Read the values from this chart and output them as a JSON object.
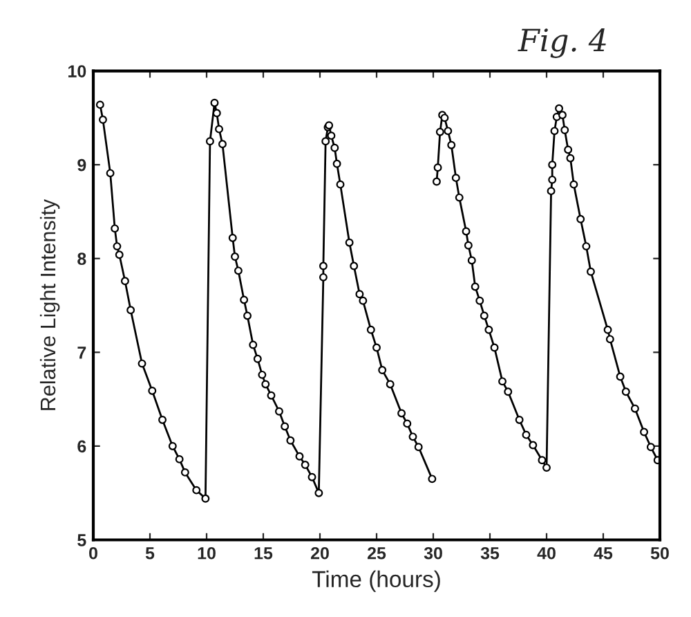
{
  "chart_data": {
    "type": "line",
    "xlabel": "Time (hours)",
    "ylabel": "Relative Light Intensity",
    "annotations": [
      "Fig. 4"
    ],
    "series": [
      {
        "color": "#000000",
        "x": [
          0.6,
          0.85,
          1.5,
          1.9,
          2.1,
          2.3,
          2.8,
          3.3,
          4.3,
          5.2,
          6.1,
          7.0,
          7.6,
          8.1,
          9.1,
          9.9,
          10.3,
          10.7,
          10.9,
          11.1,
          11.4,
          12.3,
          12.5,
          12.8,
          13.3,
          13.6,
          14.1,
          14.5,
          14.9,
          15.2,
          15.7,
          16.4,
          16.9,
          17.4,
          18.2,
          18.7,
          19.3,
          19.9,
          20.3,
          20.3,
          20.5,
          20.7,
          20.8,
          21.0,
          21.3,
          21.5,
          21.8,
          22.6,
          23.0,
          23.5,
          23.8,
          24.5,
          25.0,
          25.5,
          26.2,
          27.2,
          27.7,
          28.2,
          28.7,
          29.9,
          30.1,
          30.3,
          30.4,
          30.6,
          30.8,
          31.0,
          31.3,
          31.6,
          32.0,
          32.3,
          32.9,
          33.1,
          33.4,
          33.7,
          34.1,
          34.5,
          34.9,
          35.4,
          36.1,
          36.6,
          37.6,
          38.2,
          38.8,
          39.6,
          40.0,
          40.4,
          40.5,
          40.5,
          40.7,
          40.9,
          41.1,
          41.4,
          41.6,
          41.9,
          42.1,
          42.4,
          43.0,
          43.5,
          43.9,
          45.4,
          45.6,
          46.5,
          47.0,
          47.8,
          48.6,
          49.2,
          49.8
        ],
        "values": [
          9.64,
          9.48,
          8.91,
          8.32,
          8.13,
          8.04,
          7.76,
          7.45,
          6.88,
          6.59,
          6.28,
          6.0,
          5.86,
          5.72,
          5.53,
          5.44,
          9.25,
          9.66,
          9.55,
          9.38,
          9.22,
          8.22,
          8.02,
          7.87,
          7.56,
          7.39,
          7.08,
          6.93,
          6.76,
          6.66,
          6.54,
          6.37,
          6.21,
          6.06,
          5.89,
          5.8,
          5.67,
          5.5,
          7.8,
          7.92,
          9.25,
          9.4,
          9.42,
          9.31,
          9.18,
          9.01,
          8.79,
          8.17,
          7.92,
          7.62,
          7.55,
          7.24,
          7.05,
          6.81,
          6.66,
          6.35,
          6.24,
          6.1,
          5.99,
          5.65,
          null,
          8.82,
          8.97,
          9.35,
          9.53,
          9.5,
          9.36,
          9.21,
          8.86,
          8.65,
          8.29,
          8.14,
          7.98,
          7.7,
          7.55,
          7.39,
          7.24,
          7.05,
          6.69,
          6.58,
          6.28,
          6.12,
          6.01,
          5.85,
          5.77,
          8.72,
          8.84,
          9.0,
          9.36,
          9.51,
          9.6,
          9.53,
          9.37,
          9.16,
          9.07,
          8.79,
          8.42,
          8.13,
          7.86,
          7.24,
          7.14,
          6.74,
          6.58,
          6.4,
          6.15,
          5.99,
          5.85
        ]
      }
    ],
    "marker": "circle",
    "line_style": "solid",
    "xlim": [
      0,
      50
    ],
    "xticks": [
      0,
      5,
      10,
      15,
      20,
      25,
      30,
      35,
      40,
      45,
      50
    ],
    "ylim": [
      5,
      10
    ],
    "yticks": [
      5,
      6,
      7,
      8,
      9,
      10
    ],
    "grid": false,
    "legend": false
  }
}
